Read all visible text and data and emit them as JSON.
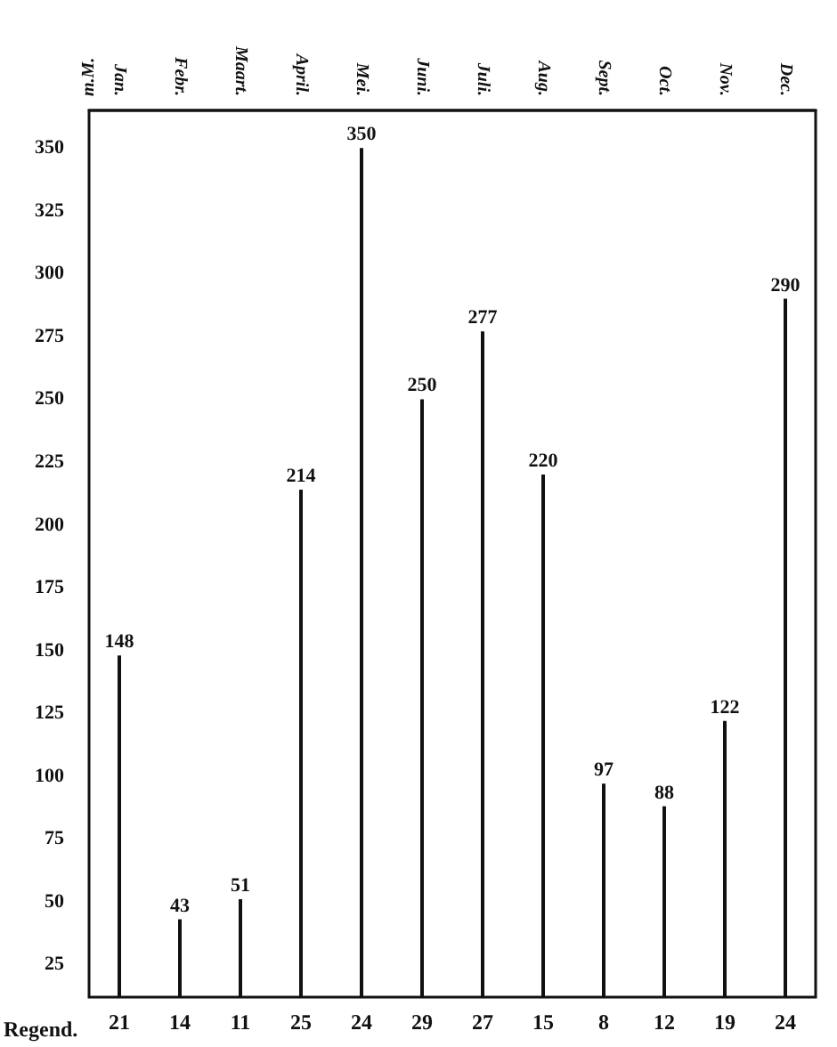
{
  "chart_data": {
    "type": "bar",
    "ylabel": "m.M.",
    "categories": [
      "Jan.",
      "Febr.",
      "Maart.",
      "April.",
      "Mei.",
      "Juni.",
      "Juli.",
      "Aug.",
      "Sept.",
      "Oct.",
      "Nov.",
      "Dec."
    ],
    "values": [
      148,
      43,
      51,
      214,
      350,
      250,
      277,
      220,
      97,
      88,
      122,
      290
    ],
    "color": "#111111",
    "data_labels": true,
    "ylim": [
      12,
      365
    ],
    "yticks": [
      25,
      50,
      75,
      100,
      125,
      150,
      175,
      200,
      225,
      250,
      275,
      300,
      325,
      350
    ],
    "annotations": [
      "Regend.",
      "21",
      "14",
      "11",
      "25",
      "24",
      "29",
      "27",
      "15",
      "8",
      "12",
      "19",
      "24"
    ]
  }
}
